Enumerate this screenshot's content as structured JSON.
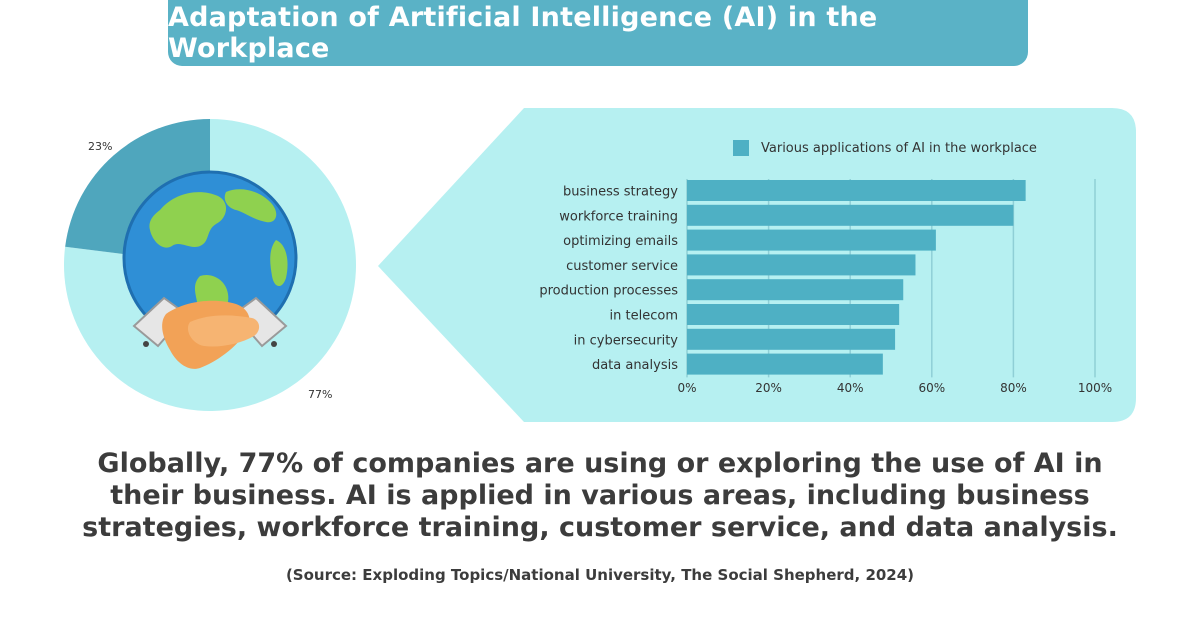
{
  "title": "Adaptation of Artificial Intelligence (AI) in the Workplace",
  "chart_data": [
    {
      "type": "pie",
      "slices": [
        {
          "label": "77%",
          "value": 77,
          "color": "#b6f0f1"
        },
        {
          "label": "23%",
          "value": 23,
          "color": "#4fa6bd"
        }
      ]
    },
    {
      "type": "bar",
      "orientation": "horizontal",
      "legend": "Various applications of AI in the workplace",
      "categories": [
        "business strategy",
        "workforce training",
        "optimizing emails",
        "customer service",
        "production processes",
        "in telecom",
        "in cybersecurity",
        "data analysis"
      ],
      "values": [
        83,
        80,
        61,
        56,
        53,
        52,
        51,
        48
      ],
      "xticks": [
        "0%",
        "20%",
        "40%",
        "60%",
        "80%",
        "100%"
      ],
      "xlim": [
        0,
        100
      ],
      "bar_color": "#4eb0c4"
    }
  ],
  "summary": "Globally, 77% of companies are using or exploring the use of AI in their business. AI is applied in various areas, including business strategies, workforce training, customer service, and data analysis.",
  "source": "(Source: Exploding Topics/National University, The Social Shepherd, 2024)",
  "colors": {
    "banner": "#5ab2c6",
    "panel": "#b6f0f1",
    "bar": "#4eb0c4"
  }
}
